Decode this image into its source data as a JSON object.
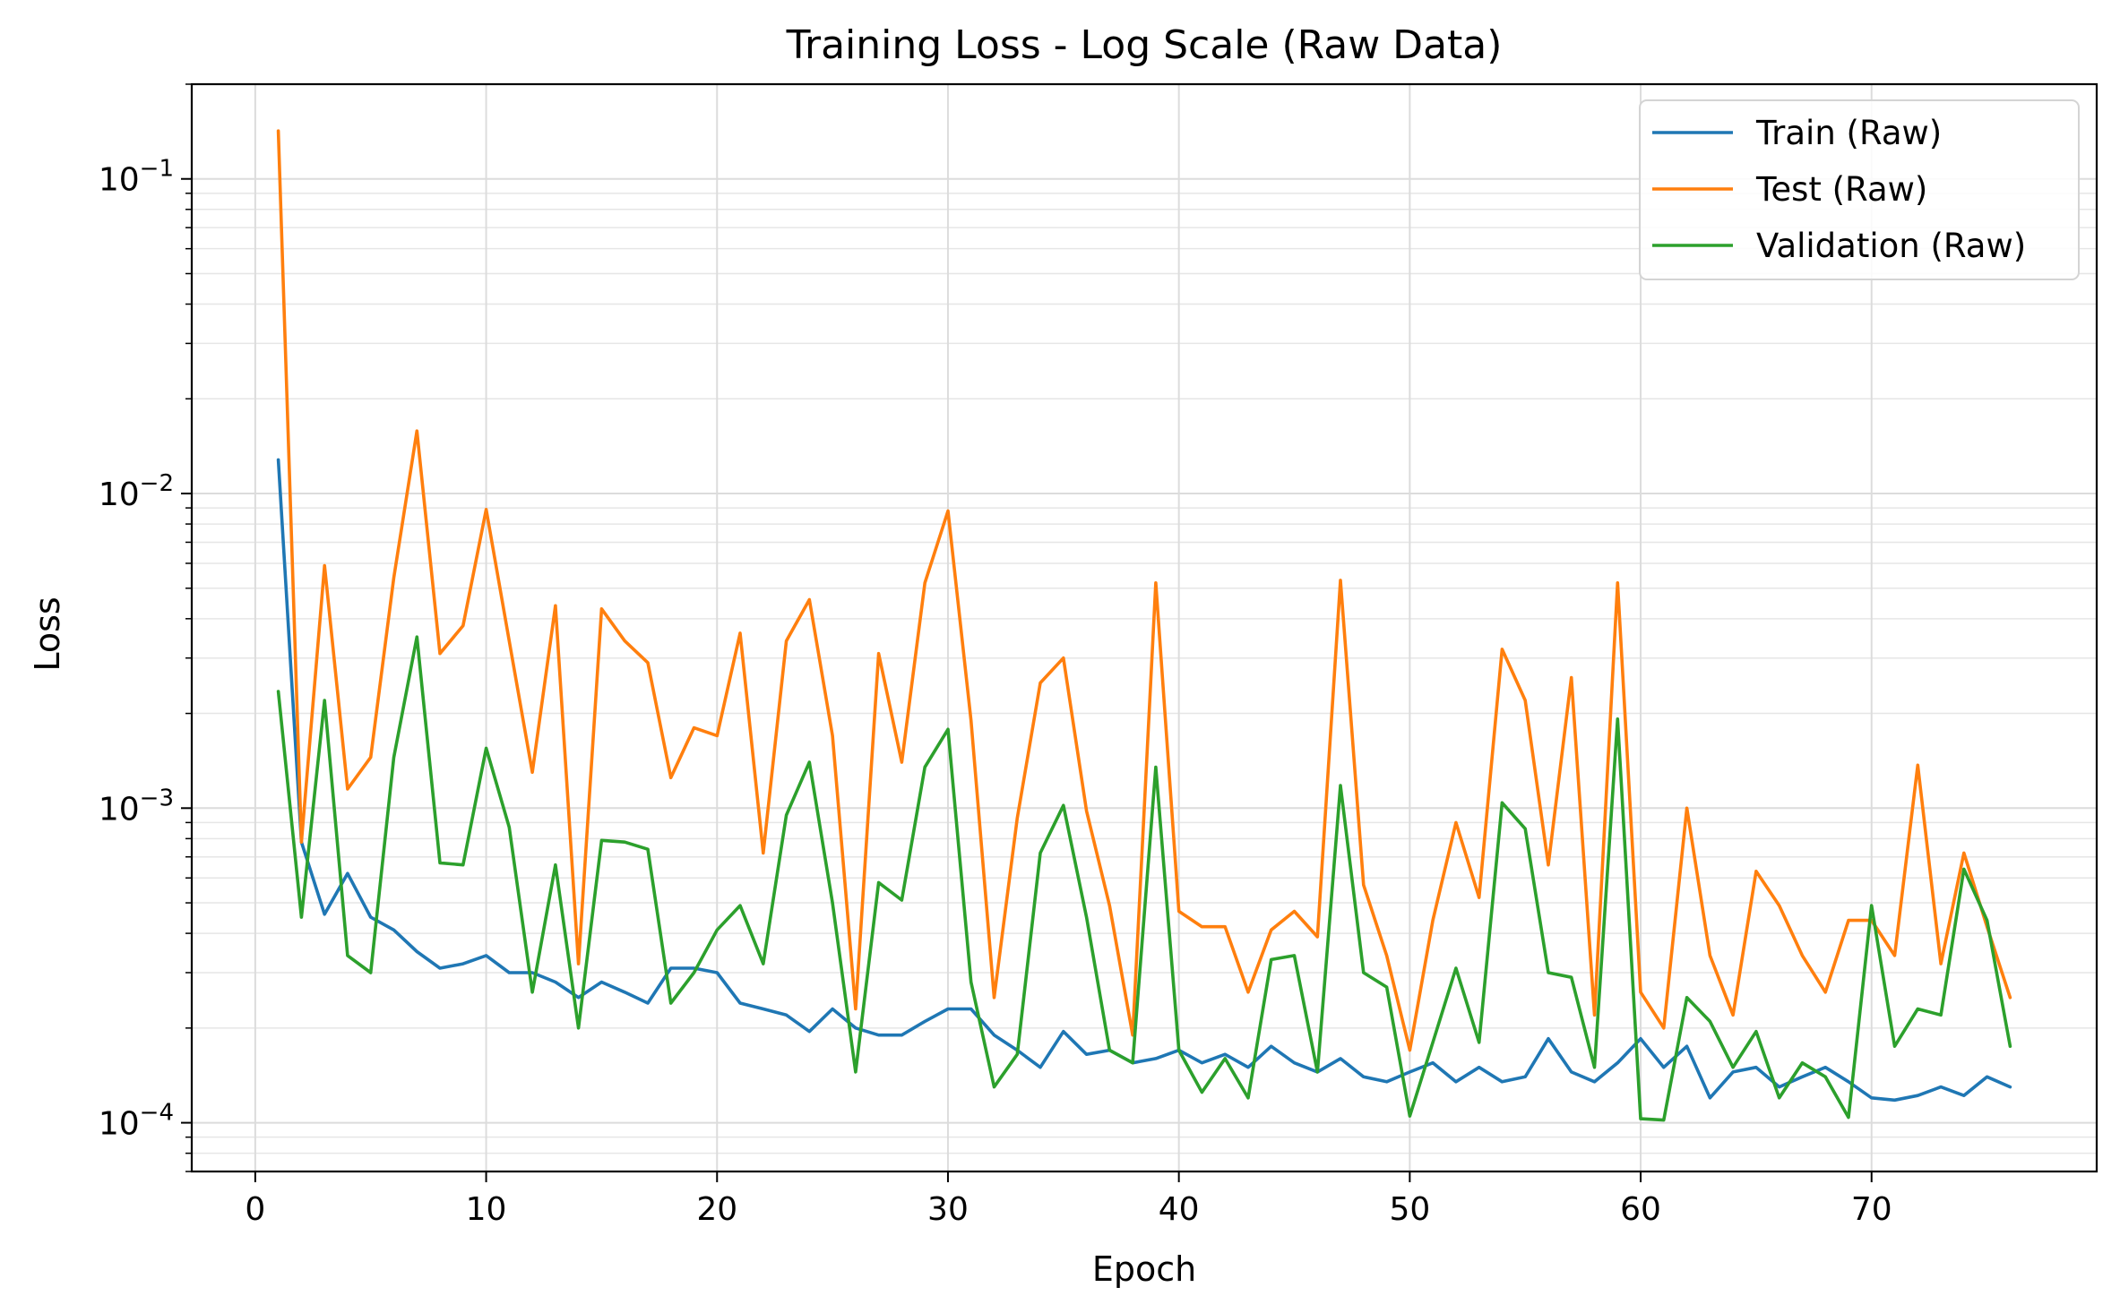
{
  "chart_data": {
    "type": "line",
    "title": "Training Loss - Log Scale (Raw Data)",
    "xlabel": "Epoch",
    "ylabel": "Loss",
    "yscale": "log",
    "xlim": [
      -2.75,
      79.75
    ],
    "ylim": [
      7e-05,
      0.2
    ],
    "xticks": [
      {
        "value": 0,
        "label": "0"
      },
      {
        "value": 10,
        "label": "10"
      },
      {
        "value": 20,
        "label": "20"
      },
      {
        "value": 30,
        "label": "30"
      },
      {
        "value": 40,
        "label": "40"
      },
      {
        "value": 50,
        "label": "50"
      },
      {
        "value": 60,
        "label": "60"
      },
      {
        "value": 70,
        "label": "70"
      }
    ],
    "yticks": [
      {
        "value": 0.0001,
        "base": "10",
        "exp": "−4"
      },
      {
        "value": 0.001,
        "base": "10",
        "exp": "−3"
      },
      {
        "value": 0.01,
        "base": "10",
        "exp": "−2"
      },
      {
        "value": 0.1,
        "base": "10",
        "exp": "−1"
      }
    ],
    "grid": true,
    "legend_position": "top-right",
    "x": [
      1,
      2,
      3,
      4,
      5,
      6,
      7,
      8,
      9,
      10,
      11,
      12,
      13,
      14,
      15,
      16,
      17,
      18,
      19,
      20,
      21,
      22,
      23,
      24,
      25,
      26,
      27,
      28,
      29,
      30,
      31,
      32,
      33,
      34,
      35,
      36,
      37,
      38,
      39,
      40,
      41,
      42,
      43,
      44,
      45,
      46,
      47,
      48,
      49,
      50,
      51,
      52,
      53,
      54,
      55,
      56,
      57,
      58,
      59,
      60,
      61,
      62,
      63,
      64,
      65,
      66,
      67,
      68,
      69,
      70,
      71,
      72,
      73,
      74,
      75,
      76
    ],
    "series": [
      {
        "name": "Train (Raw)",
        "color": "#1f77b4",
        "values": [
          0.0128,
          0.00078,
          0.00046,
          0.00062,
          0.00045,
          0.00041,
          0.00035,
          0.00031,
          0.00032,
          0.00034,
          0.0003,
          0.0003,
          0.00028,
          0.00025,
          0.00028,
          0.00026,
          0.00024,
          0.00031,
          0.00031,
          0.0003,
          0.00024,
          0.00023,
          0.00022,
          0.000195,
          0.00023,
          0.0002,
          0.00019,
          0.00019,
          0.00021,
          0.00023,
          0.00023,
          0.00019,
          0.00017,
          0.00015,
          0.000195,
          0.000165,
          0.00017,
          0.000155,
          0.00016,
          0.00017,
          0.000155,
          0.000165,
          0.00015,
          0.000175,
          0.000155,
          0.000145,
          0.00016,
          0.00014,
          0.000135,
          0.000145,
          0.000155,
          0.000135,
          0.00015,
          0.000135,
          0.00014,
          0.000185,
          0.000145,
          0.000135,
          0.000155,
          0.000185,
          0.00015,
          0.000175,
          0.00012,
          0.000145,
          0.00015,
          0.00013,
          0.00014,
          0.00015,
          0.000135,
          0.00012,
          0.000118,
          0.000122,
          0.00013,
          0.000122,
          0.00014,
          0.00013
        ]
      },
      {
        "name": "Test (Raw)",
        "color": "#ff7f0e",
        "values": [
          0.142,
          0.00078,
          0.0059,
          0.00115,
          0.00145,
          0.0054,
          0.0158,
          0.0031,
          0.0038,
          0.0089,
          0.0034,
          0.0013,
          0.0044,
          0.00032,
          0.0043,
          0.0034,
          0.0029,
          0.00125,
          0.0018,
          0.0017,
          0.0036,
          0.00072,
          0.0034,
          0.0046,
          0.0017,
          0.00023,
          0.0031,
          0.0014,
          0.0052,
          0.0088,
          0.0019,
          0.00025,
          0.00093,
          0.0025,
          0.003,
          0.00098,
          0.00049,
          0.00019,
          0.0052,
          0.00047,
          0.00042,
          0.00042,
          0.00026,
          0.00041,
          0.00047,
          0.00039,
          0.0053,
          0.00057,
          0.00034,
          0.00017,
          0.00044,
          0.0009,
          0.00052,
          0.0032,
          0.0022,
          0.00066,
          0.0026,
          0.00022,
          0.0052,
          0.00026,
          0.0002,
          0.001,
          0.00034,
          0.00022,
          0.00063,
          0.00049,
          0.00034,
          0.00026,
          0.00044,
          0.00044,
          0.00034,
          0.00137,
          0.00032,
          0.00072,
          0.00042,
          0.00025
        ]
      },
      {
        "name": "Validation (Raw)",
        "color": "#2ca02c",
        "values": [
          0.00235,
          0.00045,
          0.0022,
          0.00034,
          0.0003,
          0.00145,
          0.0035,
          0.00067,
          0.00066,
          0.00155,
          0.00087,
          0.00026,
          0.00066,
          0.0002,
          0.00079,
          0.00078,
          0.00074,
          0.00024,
          0.0003,
          0.00041,
          0.00049,
          0.00032,
          0.00095,
          0.0014,
          0.0005,
          0.000145,
          0.00058,
          0.00051,
          0.00135,
          0.00178,
          0.00028,
          0.00013,
          0.000165,
          0.00072,
          0.00102,
          0.00045,
          0.00017,
          0.000155,
          0.00135,
          0.00017,
          0.000125,
          0.00016,
          0.00012,
          0.00033,
          0.00034,
          0.000145,
          0.00118,
          0.0003,
          0.00027,
          0.000105,
          0.00018,
          0.00031,
          0.00018,
          0.00104,
          0.00086,
          0.0003,
          0.00029,
          0.00015,
          0.00192,
          0.000103,
          0.000102,
          0.00025,
          0.00021,
          0.00015,
          0.000195,
          0.00012,
          0.000155,
          0.00014,
          0.000104,
          0.00049,
          0.000175,
          0.00023,
          0.00022,
          0.00064,
          0.00044,
          0.000175
        ]
      }
    ]
  }
}
